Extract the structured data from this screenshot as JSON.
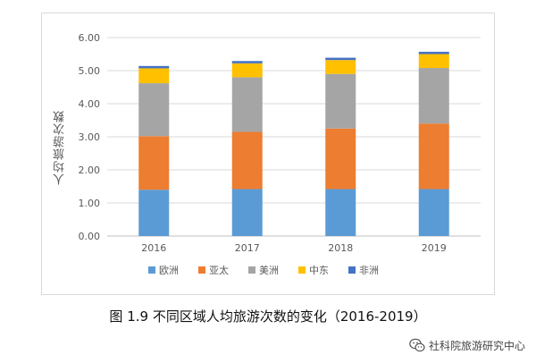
{
  "chart_data": {
    "type": "bar",
    "stacked": true,
    "categories": [
      "2016",
      "2017",
      "2018",
      "2019"
    ],
    "ylabel": "人均旅游次数",
    "ylim": [
      0,
      6
    ],
    "yticks": [
      "0.00",
      "1.00",
      "2.00",
      "3.00",
      "4.00",
      "5.00",
      "6.00"
    ],
    "grid": true,
    "legend_position": "bottom",
    "series": [
      {
        "name": "欧洲",
        "color": "#5b9bd5",
        "values": [
          1.4,
          1.42,
          1.42,
          1.42
        ]
      },
      {
        "name": "亚太",
        "color": "#ed7d31",
        "values": [
          1.62,
          1.73,
          1.83,
          1.98
        ]
      },
      {
        "name": "美洲",
        "color": "#a5a5a5",
        "values": [
          1.6,
          1.65,
          1.65,
          1.68
        ]
      },
      {
        "name": "中东",
        "color": "#ffc000",
        "values": [
          0.45,
          0.42,
          0.42,
          0.42
        ]
      },
      {
        "name": "非洲",
        "color": "#4472c4",
        "values": [
          0.07,
          0.07,
          0.07,
          0.07
        ]
      }
    ]
  },
  "caption": "图 1.9 不同区域人均旅游次数的变化（2016-2019）",
  "watermark": {
    "text": "社科院旅游研究中心",
    "icon": "wechat-icon"
  }
}
